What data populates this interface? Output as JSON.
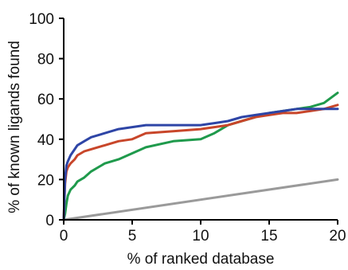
{
  "chart_data": {
    "type": "line",
    "title": "",
    "xlabel": "% of ranked database",
    "ylabel": "% of known ligands found",
    "xlim": [
      0,
      20
    ],
    "ylim": [
      0,
      100
    ],
    "x_ticks": [
      0,
      5,
      10,
      15,
      20
    ],
    "y_ticks": [
      0,
      20,
      40,
      60,
      80,
      100
    ],
    "grid": false,
    "legend": "none",
    "series": [
      {
        "color": "#2e45a6",
        "x": [
          0,
          0.1,
          0.2,
          0.3,
          0.5,
          0.8,
          1.0,
          1.5,
          2.0,
          3.0,
          4.0,
          5.0,
          6.0,
          8.0,
          10.0,
          11.0,
          12.0,
          13.0,
          14.0,
          15.0,
          16.0,
          17.0,
          18.0,
          19.0,
          20.0
        ],
        "y": [
          0,
          20,
          27,
          29,
          32,
          35,
          37,
          39,
          41,
          43,
          45,
          46,
          47,
          47,
          47,
          48,
          49,
          51,
          52,
          53,
          54,
          55,
          55,
          55,
          55
        ]
      },
      {
        "color": "#c8462a",
        "x": [
          0,
          0.1,
          0.2,
          0.3,
          0.5,
          0.8,
          1.0,
          1.5,
          2.0,
          3.0,
          4.0,
          5.0,
          6.0,
          8.0,
          10.0,
          11.0,
          12.0,
          13.0,
          14.0,
          15.0,
          16.0,
          17.0,
          18.0,
          19.0,
          20.0
        ],
        "y": [
          0,
          18,
          24,
          26,
          28,
          30,
          32,
          34,
          35,
          37,
          39,
          40,
          43,
          44,
          45,
          46,
          47,
          49,
          51,
          52,
          53,
          53,
          54,
          55,
          57
        ]
      },
      {
        "color": "#1f9a4c",
        "x": [
          0,
          0.1,
          0.2,
          0.3,
          0.5,
          0.8,
          1.0,
          1.5,
          2.0,
          3.0,
          4.0,
          5.0,
          6.0,
          8.0,
          10.0,
          11.0,
          12.0,
          13.0,
          14.0,
          15.0,
          16.0,
          17.0,
          18.0,
          19.0,
          20.0
        ],
        "y": [
          0,
          3,
          8,
          12,
          15,
          17,
          19,
          21,
          24,
          28,
          30,
          33,
          36,
          39,
          40,
          43,
          47,
          49,
          51,
          53,
          54,
          55,
          56,
          58,
          63
        ]
      },
      {
        "color": "#9a9a9a",
        "x": [
          0,
          20
        ],
        "y": [
          0,
          20
        ]
      }
    ]
  }
}
